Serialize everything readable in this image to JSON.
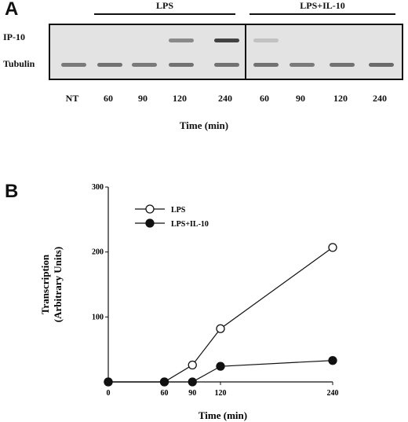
{
  "panel_a": {
    "letter": "A",
    "group_labels": [
      "LPS",
      "LPS+IL-10"
    ],
    "row_labels": [
      "IP-10",
      "Tubulin"
    ],
    "lane_labels": [
      "NT",
      "60",
      "90",
      "120",
      "240",
      "60",
      "90",
      "120",
      "240"
    ],
    "axis_title": "Time (min)",
    "ip10_intensity": [
      0,
      0,
      0,
      0.45,
      0.9,
      0.1,
      0,
      0,
      0
    ],
    "tubulin_intensity": [
      0.55,
      0.6,
      0.55,
      0.6,
      0.6,
      0.6,
      0.55,
      0.6,
      0.65
    ]
  },
  "panel_b": {
    "letter": "B",
    "chart_data": {
      "type": "line",
      "xlabel": "Time (min)",
      "ylabel_lines": [
        "Transcription",
        "(Arbitrary Units)"
      ],
      "x_ticks": [
        0,
        60,
        90,
        120,
        240
      ],
      "y_ticks": [
        0,
        100,
        200,
        300
      ],
      "xlim": [
        0,
        240
      ],
      "ylim": [
        0,
        300
      ],
      "series": [
        {
          "name": "LPS",
          "marker": "open-circle",
          "x": [
            0,
            60,
            90,
            120,
            240
          ],
          "y": [
            0,
            0,
            26,
            82,
            207
          ]
        },
        {
          "name": "LPS+IL-10",
          "marker": "filled-circle",
          "x": [
            0,
            60,
            90,
            120,
            240
          ],
          "y": [
            0,
            0,
            0,
            24,
            33
          ]
        }
      ],
      "legend_position": "top-left",
      "grid": false
    }
  }
}
